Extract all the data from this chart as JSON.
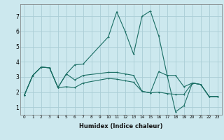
{
  "xlabel": "Humidex (Indice chaleur)",
  "background_color": "#cce8ee",
  "grid_color": "#aacdd6",
  "line_color": "#1a6e64",
  "xlim": [
    -0.5,
    23.5
  ],
  "ylim": [
    0.5,
    7.8
  ],
  "xticks": [
    0,
    1,
    2,
    3,
    4,
    5,
    6,
    7,
    8,
    9,
    10,
    11,
    12,
    13,
    14,
    15,
    16,
    17,
    18,
    19,
    20,
    21,
    22,
    23
  ],
  "yticks": [
    1,
    2,
    3,
    4,
    5,
    6,
    7
  ],
  "series1_x": [
    0,
    1,
    2,
    3,
    4,
    5,
    6,
    7,
    10,
    11,
    12,
    13,
    14,
    15,
    16,
    17,
    18,
    19,
    20,
    21,
    22,
    23
  ],
  "series1_y": [
    1.8,
    3.1,
    3.65,
    3.6,
    2.3,
    3.2,
    3.8,
    3.85,
    5.65,
    7.3,
    6.0,
    4.5,
    7.0,
    7.35,
    5.7,
    3.1,
    0.7,
    1.1,
    2.6,
    2.5,
    1.7,
    1.7
  ],
  "series2_x": [
    0,
    1,
    2,
    3,
    4,
    5,
    6,
    7,
    10,
    11,
    12,
    13,
    14,
    15,
    16,
    17,
    18,
    19,
    20,
    21,
    22,
    23
  ],
  "series2_y": [
    1.8,
    3.1,
    3.65,
    3.6,
    2.3,
    2.35,
    2.3,
    2.6,
    2.9,
    2.85,
    2.75,
    2.65,
    2.05,
    1.95,
    2.0,
    1.9,
    1.85,
    1.85,
    2.6,
    2.5,
    1.7,
    1.7
  ],
  "series3_x": [
    0,
    1,
    2,
    3,
    4,
    5,
    6,
    7,
    10,
    11,
    12,
    13,
    14,
    15,
    16,
    17,
    18,
    19,
    20,
    21,
    22,
    23
  ],
  "series3_y": [
    1.8,
    3.1,
    3.65,
    3.6,
    2.3,
    3.2,
    2.8,
    3.1,
    3.3,
    3.3,
    3.2,
    3.1,
    2.05,
    1.95,
    3.35,
    3.1,
    3.1,
    2.35,
    2.6,
    2.5,
    1.7,
    1.7
  ]
}
